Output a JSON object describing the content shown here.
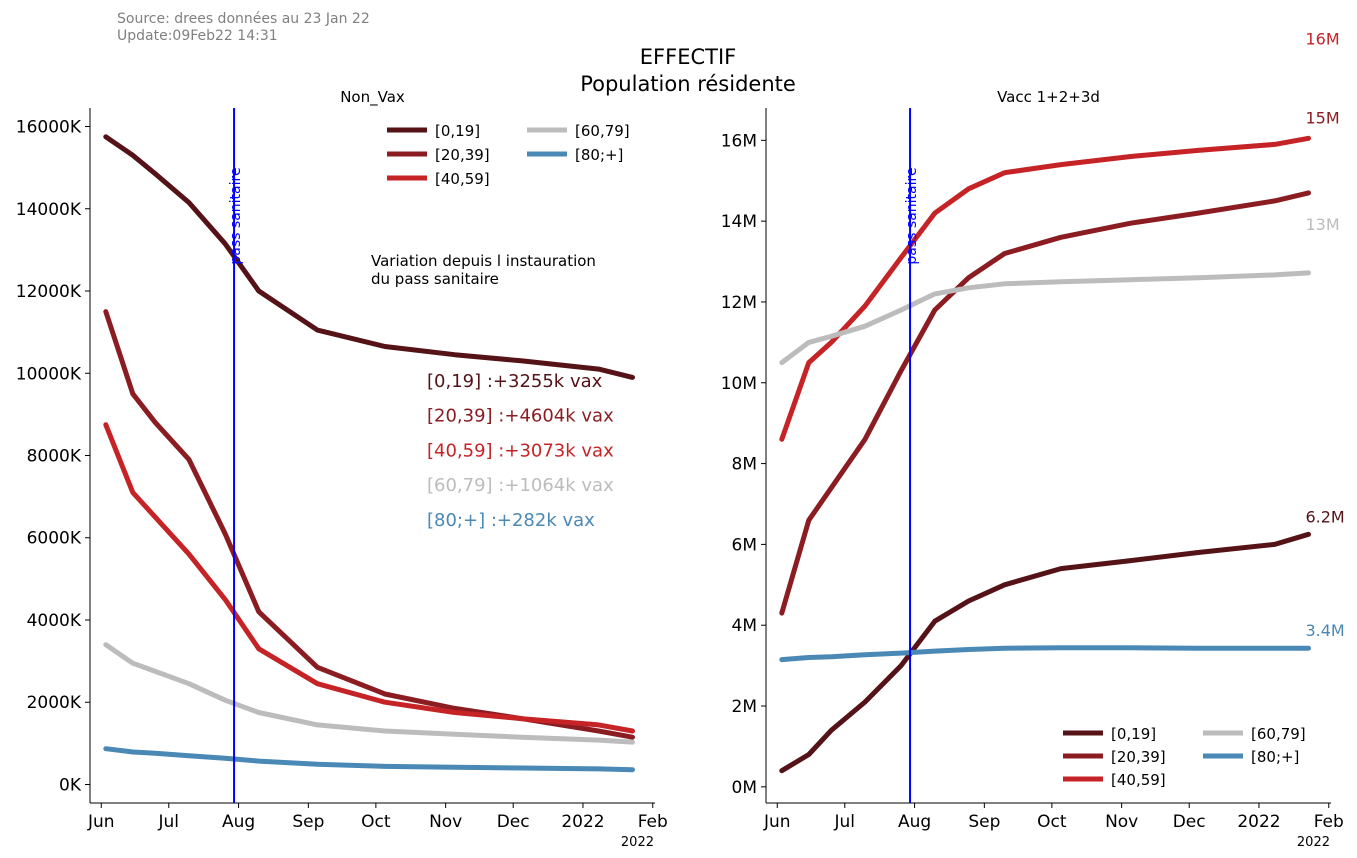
{
  "source_line": "Source: drees données au 23 Jan 22",
  "update_line": "Update:09Feb22 14:31",
  "figure_title": [
    "EFFECTIF",
    "Population résidente"
  ],
  "colors": {
    "[0,19]": "#551318",
    "[20,39]": "#8b1d22",
    "[40,59]": "#c62326",
    "[60,79]": "#bcbcbc",
    "[80;+]": "#4a88b5",
    "vline": "#0000ff"
  },
  "chart_data": [
    {
      "type": "line",
      "title": "Non_Vax",
      "x_axis_kind": "date",
      "x_ticks": [
        "Jun",
        "Jul",
        "Aug",
        "Sep",
        "Oct",
        "Nov",
        "Dec",
        "2022",
        "Feb"
      ],
      "x_tick_dates": [
        "2021-06-01",
        "2021-07-01",
        "2021-08-01",
        "2021-09-01",
        "2021-10-01",
        "2021-11-01",
        "2021-12-01",
        "2022-01-01",
        "2022-02-01"
      ],
      "x_offset_label": "2022",
      "xlim": [
        "2021-05-27",
        "2022-02-02"
      ],
      "y_ticks": [
        "0K",
        "2000K",
        "4000K",
        "6000K",
        "8000K",
        "10000K",
        "12000K",
        "14000K",
        "16000K"
      ],
      "y_tick_values": [
        0,
        2000,
        4000,
        6000,
        8000,
        10000,
        12000,
        14000,
        16000
      ],
      "ylabel_unit": "thousands",
      "ylim": [
        -450,
        16450
      ],
      "grid": false,
      "legend_position": "top-right",
      "legend": [
        "[0,19]",
        "[20,39]",
        "[40,59]",
        "[60,79]",
        "[80;+]"
      ],
      "vertical_line": {
        "date": "2021-07-30",
        "label": "pass sanitaire"
      },
      "note": [
        "Variation depuis l instauration",
        "du pass sanitaire"
      ],
      "annotations": [
        {
          "series": "[0,19]",
          "text": "[0,19]  :+3255k vax"
        },
        {
          "series": "[20,39]",
          "text": "[20,39] :+4604k vax"
        },
        {
          "series": "[40,59]",
          "text": "[40,59] :+3073k vax"
        },
        {
          "series": "[60,79]",
          "text": "[60,79] :+1064k vax"
        },
        {
          "series": "[80;+]",
          "text": "[80;+]  :+282k vax"
        }
      ],
      "x": [
        "2021-06-03",
        "2021-06-15",
        "2021-06-25",
        "2021-07-10",
        "2021-07-26",
        "2021-08-10",
        "2021-09-05",
        "2021-10-05",
        "2021-11-05",
        "2021-12-05",
        "2022-01-08",
        "2022-01-23"
      ],
      "series": [
        {
          "name": "[0,19]",
          "values": [
            15750,
            15300,
            14850,
            14150,
            13150,
            12000,
            11050,
            10650,
            10450,
            10300,
            10100,
            9900
          ]
        },
        {
          "name": "[20,39]",
          "values": [
            11500,
            9500,
            8800,
            7900,
            6100,
            4200,
            2850,
            2200,
            1850,
            1600,
            1300,
            1150
          ]
        },
        {
          "name": "[40,59]",
          "values": [
            8750,
            7100,
            6500,
            5600,
            4500,
            3300,
            2450,
            2000,
            1750,
            1600,
            1450,
            1300
          ]
        },
        {
          "name": "[60,79]",
          "values": [
            3400,
            2950,
            2750,
            2450,
            2050,
            1750,
            1450,
            1300,
            1220,
            1150,
            1080,
            1030
          ]
        },
        {
          "name": "[80;+]",
          "values": [
            870,
            790,
            760,
            700,
            640,
            570,
            490,
            440,
            420,
            400,
            380,
            360
          ]
        }
      ]
    },
    {
      "type": "line",
      "title": "Vacc 1+2+3d",
      "x_axis_kind": "date",
      "x_ticks": [
        "Jun",
        "Jul",
        "Aug",
        "Sep",
        "Oct",
        "Nov",
        "Dec",
        "2022",
        "Feb"
      ],
      "x_tick_dates": [
        "2021-06-01",
        "2021-07-01",
        "2021-08-01",
        "2021-09-01",
        "2021-10-01",
        "2021-11-01",
        "2021-12-01",
        "2022-01-01",
        "2022-02-01"
      ],
      "x_offset_label": "2022",
      "xlim": [
        "2021-05-27",
        "2022-02-02"
      ],
      "y_ticks": [
        "0M",
        "2M",
        "4M",
        "6M",
        "8M",
        "10M",
        "12M",
        "14M",
        "16M"
      ],
      "y_tick_values": [
        0,
        2,
        4,
        6,
        8,
        10,
        12,
        14,
        16
      ],
      "ylabel_unit": "millions",
      "ylim": [
        -0.4,
        16.8
      ],
      "grid": false,
      "legend_position": "bottom-right",
      "legend": [
        "[0,19]",
        "[20,39]",
        "[40,59]",
        "[60,79]",
        "[80;+]"
      ],
      "vertical_line": {
        "date": "2021-07-30",
        "label": "pass sanitaire"
      },
      "end_labels": [
        {
          "series": "[40,59]",
          "text": "16M"
        },
        {
          "series": "[20,39]",
          "text": "15M"
        },
        {
          "series": "[60,79]",
          "text": "13M"
        },
        {
          "series": "[0,19]",
          "text": "6.2M"
        },
        {
          "series": "[80;+]",
          "text": "3.4M"
        }
      ],
      "x": [
        "2021-06-03",
        "2021-06-15",
        "2021-06-25",
        "2021-07-10",
        "2021-07-26",
        "2021-08-10",
        "2021-08-25",
        "2021-09-10",
        "2021-10-05",
        "2021-11-05",
        "2021-12-05",
        "2022-01-08",
        "2022-01-23"
      ],
      "series": [
        {
          "name": "[0,19]",
          "values": [
            0.4,
            0.8,
            1.4,
            2.1,
            3.0,
            4.1,
            4.6,
            5.0,
            5.4,
            5.6,
            5.8,
            6.0,
            6.25
          ]
        },
        {
          "name": "[20,39]",
          "values": [
            4.3,
            6.6,
            7.4,
            8.6,
            10.3,
            11.8,
            12.6,
            13.2,
            13.6,
            13.95,
            14.2,
            14.5,
            14.7
          ]
        },
        {
          "name": "[40,59]",
          "values": [
            8.6,
            10.5,
            11.0,
            11.9,
            13.1,
            14.2,
            14.8,
            15.2,
            15.4,
            15.6,
            15.75,
            15.9,
            16.05
          ]
        },
        {
          "name": "[60,79]",
          "values": [
            10.5,
            11.0,
            11.15,
            11.4,
            11.8,
            12.2,
            12.35,
            12.45,
            12.5,
            12.55,
            12.6,
            12.67,
            12.72
          ]
        },
        {
          "name": "[80;+]",
          "values": [
            3.15,
            3.2,
            3.22,
            3.27,
            3.31,
            3.36,
            3.4,
            3.43,
            3.44,
            3.44,
            3.43,
            3.43,
            3.43
          ]
        }
      ]
    }
  ]
}
